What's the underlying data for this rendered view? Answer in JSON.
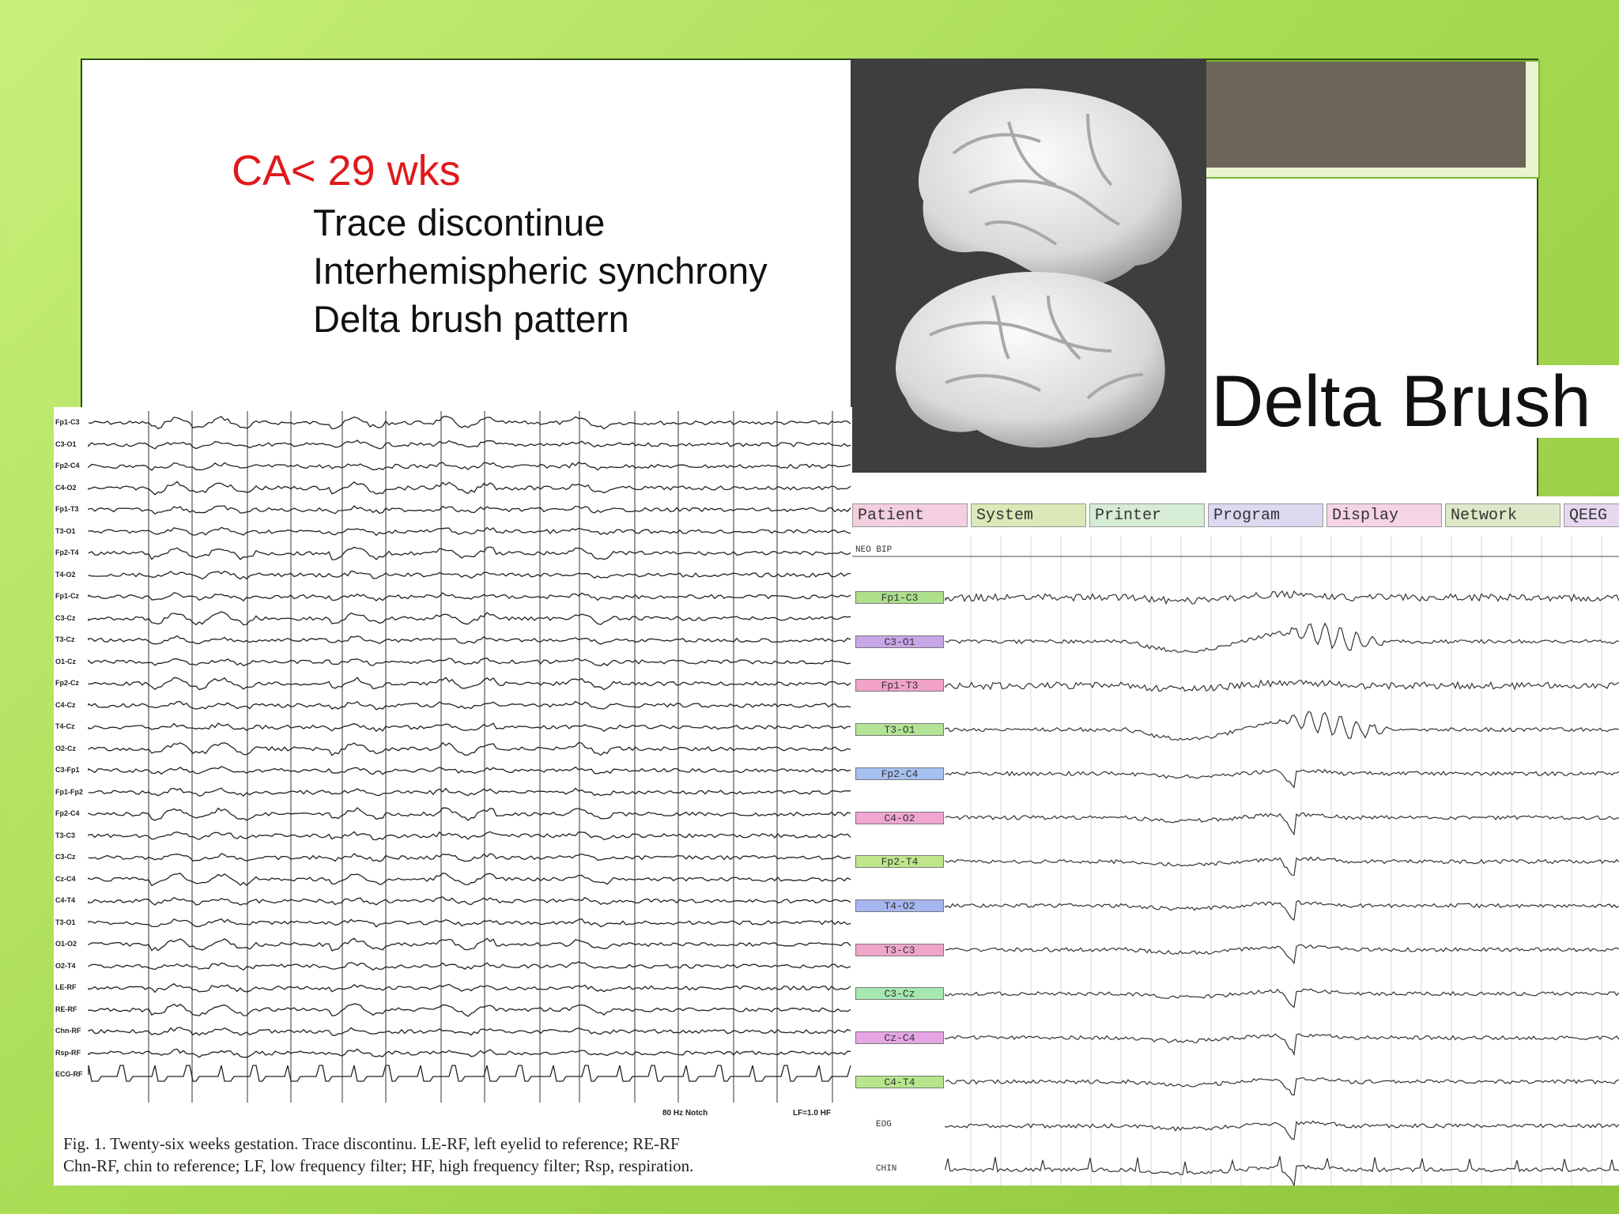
{
  "slide": {
    "heading": "CA< 29 wks",
    "bullets": [
      "Trace discontinue",
      "Interhemispheric synchrony",
      "Delta brush pattern"
    ]
  },
  "brush_title": "Delta Brush",
  "left_eeg": {
    "channels": [
      "Fp1-C3",
      "C3-O1",
      "Fp2-C4",
      "C4-O2",
      "Fp1-T3",
      "T3-O1",
      "Fp2-T4",
      "T4-O2",
      "Fp1-Cz",
      "C3-Cz",
      "T3-Cz",
      "O1-Cz",
      "Fp2-Cz",
      "C4-Cz",
      "T4-Cz",
      "O2-Cz",
      "C3-Fp1",
      "Fp1-Fp2",
      "Fp2-C4",
      "T3-C3",
      "C3-Cz",
      "Cz-C4",
      "C4-T4",
      "T3-O1",
      "O1-O2",
      "O2-T4",
      "LE-RF",
      "RE-RF",
      "Chn-RF",
      "Rsp-RF",
      "ECG-RF"
    ],
    "footer_left": "80 Hz Notch",
    "footer_right": "LF=1.0 HF",
    "caption_lines": [
      "Fig. 1. Twenty-six weeks gestation. Trace discontinu. LE-RF, left eyelid to reference; RE-RF",
      "Chn-RF, chin to reference; LF, low frequency filter; HF, high frequency filter; Rsp, respiration."
    ]
  },
  "right_eeg": {
    "menu": [
      "Patient",
      "System",
      "Printer",
      "Program",
      "Display",
      "Network",
      "QEEG"
    ],
    "menu_colors": [
      "#f3cfe0",
      "#dbe8b8",
      "#d6ecd4",
      "#dcd8ef",
      "#f5d4e4",
      "#dde8c8",
      "#e6d8ef"
    ],
    "montage": "NEO BIP",
    "channels": [
      {
        "label": "Fp1-C3",
        "color": "#aee08c"
      },
      {
        "label": "C3-O1",
        "color": "#c8a6e8"
      },
      {
        "label": "Fp1-T3",
        "color": "#f0a2c8"
      },
      {
        "label": "T3-O1",
        "color": "#b4e495"
      },
      {
        "label": "Fp2-C4",
        "color": "#a6c0f0"
      },
      {
        "label": "C4-O2",
        "color": "#f2a6d2"
      },
      {
        "label": "Fp2-T4",
        "color": "#c0e68c"
      },
      {
        "label": "T4-O2",
        "color": "#a6b6f0"
      },
      {
        "label": "T3-C3",
        "color": "#f0a6c8"
      },
      {
        "label": "C3-Cz",
        "color": "#a6e8b0"
      },
      {
        "label": "Cz-C4",
        "color": "#e6a6e6"
      },
      {
        "label": "C4-T4",
        "color": "#b6e68c"
      }
    ],
    "extra_channels": [
      "EOG",
      "CHIN"
    ]
  }
}
